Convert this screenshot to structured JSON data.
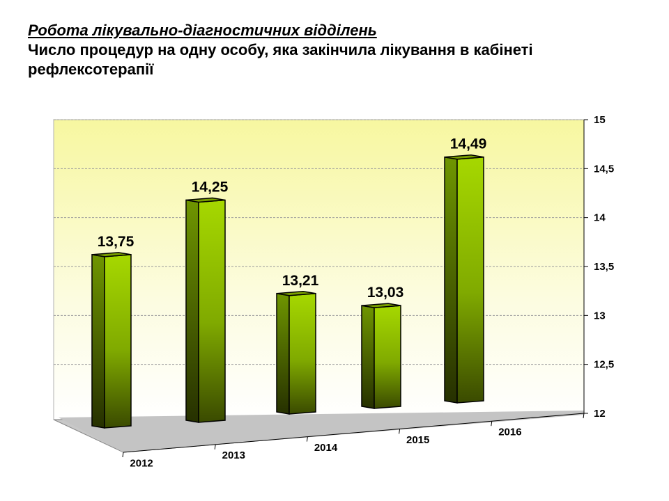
{
  "title": "Робота лікувально-діагностичних відділень",
  "subtitle": "Число процедур на одну особу, яка  закінчила  лікування в кабінеті рефлексотерапії",
  "chart_data": {
    "type": "bar",
    "title": "Робота лікувально-діагностичних відділень",
    "subtitle": "Число процедур на одну особу, яка  закінчила  лікування в кабінеті рефлексотерапії",
    "categories": [
      "2012",
      "2013",
      "2014",
      "2015",
      "2016"
    ],
    "values": [
      13.75,
      14.25,
      13.21,
      13.03,
      14.49
    ],
    "value_labels": [
      "13,75",
      "14,25",
      "13,21",
      "13,03",
      "14,49"
    ],
    "ylim": [
      12,
      15
    ],
    "yticks": [
      12,
      12.5,
      13,
      13.5,
      14,
      14.5,
      15
    ],
    "ytick_labels": [
      "12",
      "12,5",
      "13",
      "13,5",
      "14",
      "14,5",
      "15"
    ],
    "xlabel": "",
    "ylabel": "",
    "grid": true,
    "legend": "none",
    "bar_color": "#8fbf00",
    "wall_color": "#fafac8",
    "floor_color": "#c8c8c8"
  }
}
